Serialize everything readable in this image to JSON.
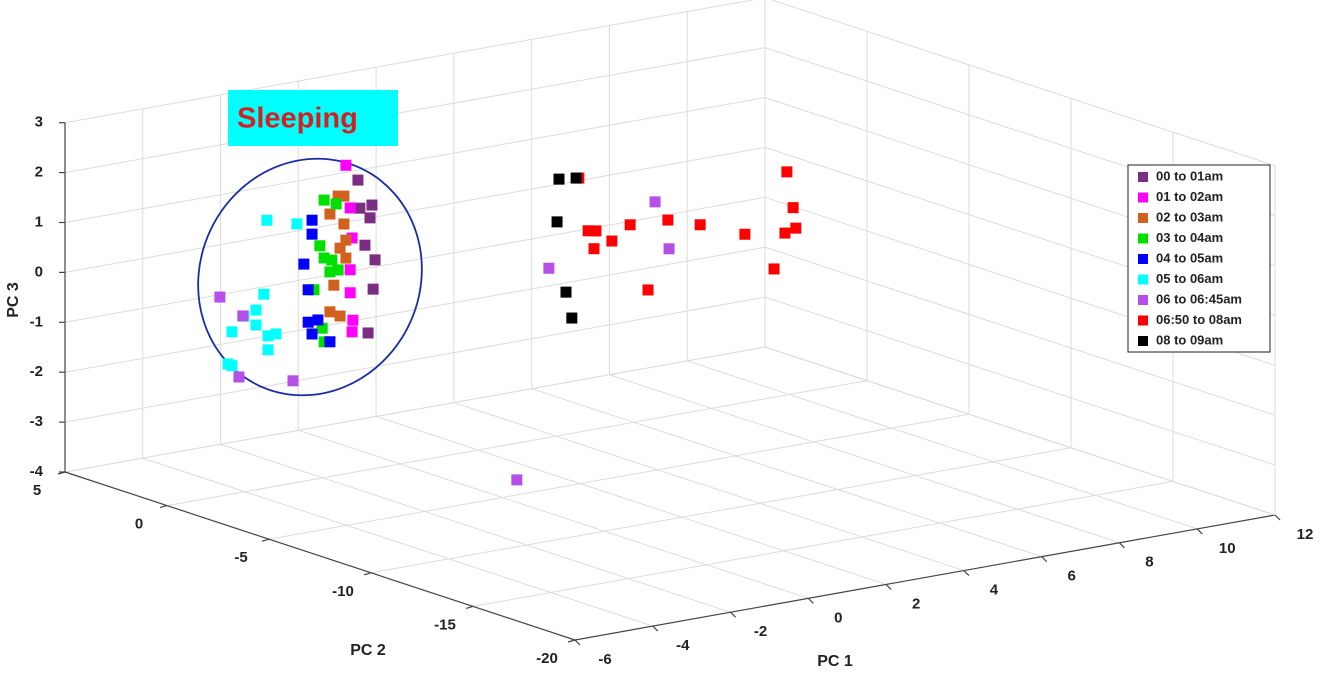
{
  "chart_data": {
    "type": "scatter3d",
    "xlabel": "PC 1",
    "ylabel": "PC 2",
    "zlabel": "PC 3",
    "annotation": "Sleeping",
    "xlim": [
      -6,
      12
    ],
    "xticks": [
      -6,
      -4,
      -2,
      0,
      2,
      4,
      6,
      8,
      10,
      12
    ],
    "ylim": [
      5,
      -20
    ],
    "yticks": [
      5,
      0,
      -5,
      -10,
      -15,
      -20
    ],
    "zlim": [
      -4,
      3
    ],
    "zticks": [
      -4,
      -3,
      -2,
      -1,
      0,
      1,
      2,
      3
    ],
    "grid": true,
    "legend": "right",
    "series": [
      {
        "name": "00 to 01am",
        "color": "#7b2c83",
        "x": [
          -1.09,
          -0.73,
          -0.78,
          -1.04,
          -0.91,
          -0.65,
          -0.7,
          -0.83
        ],
        "y": [
          0,
          0,
          0,
          0,
          0,
          0,
          0,
          0
        ],
        "z": [
          1.84,
          1.29,
          1.04,
          1.27,
          0.51,
          0.18,
          -0.4,
          -1.26
        ]
      },
      {
        "name": "01 to 02am",
        "color": "#ff00ff",
        "x": [
          -1.4,
          -1.29,
          -1.24,
          -1.29,
          -1.29,
          -1.22,
          -1.24
        ],
        "y": [
          0,
          0,
          0,
          0,
          0,
          0,
          0
        ],
        "z": [
          2.18,
          1.31,
          0.7,
          0.07,
          -0.39,
          -0.95,
          -1.18
        ]
      },
      {
        "name": "02 to 03am",
        "color": "#d2601e",
        "x": [
          -1.6,
          -1.45,
          -1.81,
          -1.45,
          -1.4,
          -1.55,
          -1.4,
          -1.71,
          -1.81,
          -1.55
        ],
        "y": [
          0,
          0,
          0,
          0,
          0,
          0,
          0,
          0,
          0,
          0
        ],
        "z": [
          1.59,
          1.57,
          1.26,
          1.01,
          0.68,
          0.54,
          0.32,
          -0.18,
          -0.7,
          -0.82
        ]
      },
      {
        "name": "03 to 04am",
        "color": "#00e000",
        "x": [
          -1.96,
          -1.65,
          -2.07,
          -1.96,
          -1.76,
          -1.6,
          -1.81,
          -2.22,
          -2.01,
          -1.96
        ],
        "y": [
          0,
          0,
          0,
          0,
          0,
          0,
          0,
          0,
          0,
          0
        ],
        "z": [
          1.56,
          1.44,
          0.66,
          0.4,
          0.33,
          0.11,
          0.1,
          -0.2,
          -1.0,
          -1.28
        ]
      },
      {
        "name": "04 to 05am",
        "color": "#0000ff",
        "x": [
          -2.27,
          -2.27,
          -2.48,
          -2.37,
          -2.12,
          -2.37,
          -2.27,
          -1.81
        ],
        "y": [
          0,
          0,
          0,
          0,
          0,
          0,
          0,
          0
        ],
        "z": [
          1.2,
          0.92,
          0.35,
          -0.18,
          -0.82,
          -0.83,
          -1.08,
          -1.3
        ]
      },
      {
        "name": "05 to 06am",
        "color": "#00ffff",
        "x": [
          -3.43,
          -2.66,
          -3.51,
          -3.71,
          -4.02,
          -3.71,
          -3.4,
          -3.2,
          -3.4,
          -4.33,
          -4.43,
          -4.33
        ],
        "y": [
          0,
          0,
          0,
          0,
          0,
          0,
          0,
          0,
          0,
          0,
          0,
          0
        ],
        "z": [
          1.36,
          1.18,
          -0.11,
          -0.4,
          -0.48,
          -0.7,
          -0.96,
          -0.95,
          -1.24,
          -0.75,
          -1.38,
          -1.43
        ]
      },
      {
        "name": "06 to 06:45am",
        "color": "#b44fe8",
        "x": [
          -4.64,
          -4.05,
          -4.15,
          -2.76,
          -2.25,
          3.82,
          6.55,
          6.91
        ],
        "y": [
          0,
          0,
          0,
          0,
          -10,
          0,
          0,
          0
        ],
        "z": [
          -0.01,
          -0.47,
          -1.68,
          -1.95,
          -2.66,
          -0.61,
          0.34,
          -0.65
        ]
      },
      {
        "name": "06:50 to 08am",
        "color": "#ff0000",
        "x": [
          4.59,
          4.83,
          5.03,
          4.98,
          5.44,
          5.91,
          6.37,
          6.88,
          7.71,
          8.86,
          9.61,
          9.94,
          10.1,
          9.89,
          10.17
        ],
        "y": [
          0,
          0,
          0,
          0,
          0,
          0,
          0,
          0,
          0,
          0,
          0,
          0,
          0,
          0,
          0
        ],
        "z": [
          1.09,
          0.0,
          -0.03,
          -0.38,
          -0.29,
          -0.03,
          -1.4,
          -0.07,
          -0.28,
          -0.63,
          -1.43,
          0.47,
          -0.27,
          -0.75,
          -0.69
        ]
      },
      {
        "name": "08 to 09am",
        "color": "#000000",
        "x": [
          4.08,
          4.52,
          4.03,
          4.26,
          4.41
        ],
        "y": [
          0,
          0,
          0,
          0,
          0
        ],
        "z": [
          1.14,
          1.1,
          0.29,
          -1.15,
          -1.69
        ]
      }
    ]
  }
}
